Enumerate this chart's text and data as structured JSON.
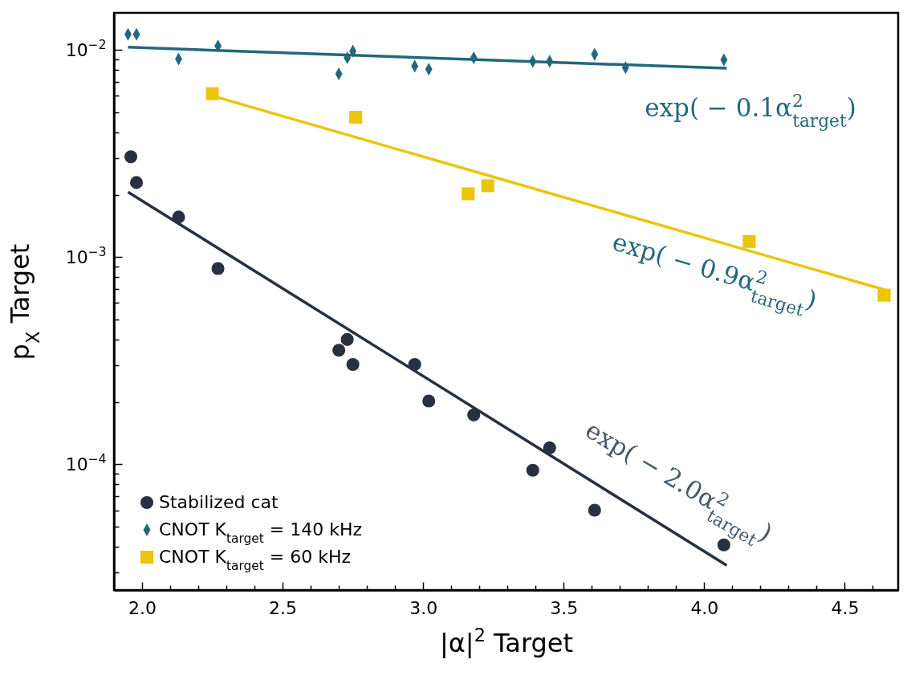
{
  "chart_data": {
    "type": "scatter",
    "xlabel": "|α|$^{2}$ Target",
    "ylabel": "p$_{X}$ Target",
    "xlim": [
      1.9,
      4.69
    ],
    "ylim": [
      2.47e-05,
      0.0151
    ],
    "log": "y",
    "grid": false,
    "legend": "bottom left",
    "xticks": [
      {
        "value": 2.0,
        "label": "2.0"
      },
      {
        "value": 2.5,
        "label": "2.5"
      },
      {
        "value": 3.0,
        "label": "3.0"
      },
      {
        "value": 3.5,
        "label": "3.5"
      },
      {
        "value": 4.0,
        "label": "4.0"
      },
      {
        "value": 4.5,
        "label": "4.5"
      },
      {
        "value": 2.1,
        "label": null
      },
      {
        "value": 2.2,
        "label": null
      },
      {
        "value": 2.3,
        "label": null
      },
      {
        "value": 2.4,
        "label": null
      },
      {
        "value": 2.6,
        "label": null
      },
      {
        "value": 2.7,
        "label": null
      },
      {
        "value": 2.8,
        "label": null
      },
      {
        "value": 2.9,
        "label": null
      },
      {
        "value": 3.1,
        "label": null
      },
      {
        "value": 3.2,
        "label": null
      },
      {
        "value": 3.3,
        "label": null
      },
      {
        "value": 3.4,
        "label": null
      },
      {
        "value": 3.6,
        "label": null
      },
      {
        "value": 3.7,
        "label": null
      },
      {
        "value": 3.8,
        "label": null
      },
      {
        "value": 3.9,
        "label": null
      },
      {
        "value": 4.1,
        "label": null
      },
      {
        "value": 4.2,
        "label": null
      },
      {
        "value": 4.3,
        "label": null
      },
      {
        "value": 4.4,
        "label": null
      },
      {
        "value": 4.6,
        "label": null
      }
    ],
    "yticks": [
      {
        "value": 0.0001,
        "label": "10$^{−4}$"
      },
      {
        "value": 0.001,
        "label": "10$^{−3}$"
      },
      {
        "value": 0.01,
        "label": "10$^{−2}$"
      },
      {
        "value": 3e-05,
        "label": null
      },
      {
        "value": 4e-05,
        "label": null
      },
      {
        "value": 5e-05,
        "label": null
      },
      {
        "value": 6e-05,
        "label": null
      },
      {
        "value": 7e-05,
        "label": null
      },
      {
        "value": 8e-05,
        "label": null
      },
      {
        "value": 9e-05,
        "label": null
      },
      {
        "value": 0.0002,
        "label": null
      },
      {
        "value": 0.0003,
        "label": null
      },
      {
        "value": 0.0004,
        "label": null
      },
      {
        "value": 0.0005,
        "label": null
      },
      {
        "value": 0.0006,
        "label": null
      },
      {
        "value": 0.0007,
        "label": null
      },
      {
        "value": 0.0008,
        "label": null
      },
      {
        "value": 0.0009,
        "label": null
      },
      {
        "value": 0.002,
        "label": null
      },
      {
        "value": 0.003,
        "label": null
      },
      {
        "value": 0.004,
        "label": null
      },
      {
        "value": 0.005,
        "label": null
      },
      {
        "value": 0.006,
        "label": null
      },
      {
        "value": 0.007,
        "label": null
      },
      {
        "value": 0.008,
        "label": null
      },
      {
        "value": 0.009,
        "label": null
      }
    ],
    "series": [
      {
        "name": "Stabilized cat",
        "type": "scatter",
        "marker": "circle",
        "color": "#27313f",
        "x": [
          1.96,
          1.98,
          2.13,
          2.27,
          2.7,
          2.73,
          2.75,
          2.97,
          3.02,
          3.18,
          3.39,
          3.45,
          3.61,
          4.07
        ],
        "values": [
          0.00305,
          0.00229,
          0.00156,
          0.00088,
          0.000355,
          0.0004,
          0.000303,
          0.000303,
          0.000202,
          0.000173,
          9.36e-05,
          0.00012,
          6e-05,
          4.08e-05
        ]
      },
      {
        "name": "CNOT K$_{target}$ = 140 kHz",
        "type": "scatter",
        "marker": "diamond",
        "color": "#23677d",
        "x": [
          1.95,
          1.98,
          2.13,
          2.27,
          2.7,
          2.73,
          2.75,
          2.97,
          3.02,
          3.18,
          3.39,
          3.45,
          3.61,
          3.72,
          4.07
        ],
        "values": [
          0.0119,
          0.0119,
          0.00904,
          0.01045,
          0.00766,
          0.00916,
          0.00987,
          0.00835,
          0.00807,
          0.00916,
          0.00881,
          0.00881,
          0.00953,
          0.00821,
          0.00896
        ]
      },
      {
        "name": "CNOT K$_{target}$ = 60 kHz",
        "type": "scatter",
        "marker": "square",
        "color": "#ebc50c",
        "x": [
          2.25,
          2.76,
          3.16,
          3.23,
          4.16,
          4.64
        ],
        "values": [
          0.00615,
          0.00473,
          0.00202,
          0.00221,
          0.00119,
          0.000655
        ]
      },
      {
        "type": "line",
        "color": "#23677d",
        "x": [
          1.95,
          4.08
        ],
        "values": [
          0.0103,
          0.00815
        ]
      },
      {
        "type": "line",
        "color": "#ebc50c",
        "x": [
          2.25,
          4.66
        ],
        "values": [
          0.006,
          0.000684
        ]
      },
      {
        "type": "line",
        "color": "#27313f",
        "x": [
          1.95,
          4.08
        ],
        "values": [
          0.00206,
          3.25e-05
        ]
      }
    ],
    "annotations": [
      "exp( − 0.1α$^{2}$$_{target}$)",
      "exp( − 0.9α$^{2}$$_{target}$)",
      "exp( − 2.0α$^{2}$$_{target}$)"
    ]
  }
}
